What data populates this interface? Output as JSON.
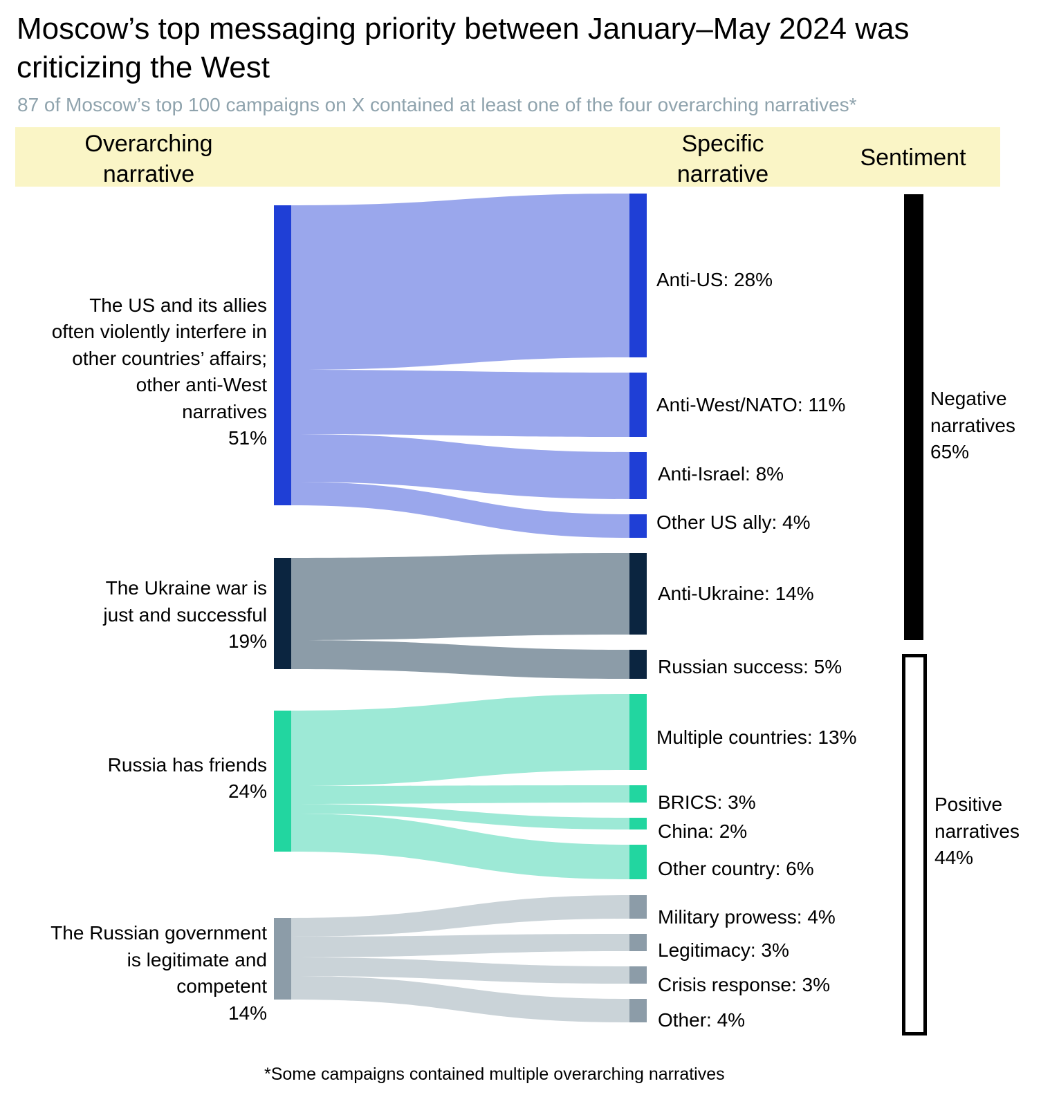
{
  "title": "Moscow’s top messaging priority between January–May 2024 was criticizing the West",
  "subtitle": "87 of Moscow’s top 100 campaigns on X contained at least one of the four overarching narratives*",
  "headers": {
    "overarching": "Overarching narrative",
    "specific": "Specific narrative",
    "sentiment": "Sentiment"
  },
  "footnote": "*Some campaigns contained multiple overarching narratives",
  "colors": {
    "anti_west_node": "#1f3fd6",
    "anti_west_flow": "#9aa7ec",
    "ukraine_node": "#0b2540",
    "ukraine_flow": "#8c9ca8",
    "friends_node": "#22d6a0",
    "friends_flow": "#9de9d6",
    "gov_node": "#8c9ca8",
    "gov_flow": "#cad3d8",
    "header_band": "#faf5c6",
    "subtitle": "#8fa3ad"
  },
  "overarching": [
    {
      "id": "anti_west",
      "label_lines": [
        "The US and its allies",
        "often violently interfere in",
        "other countries’ affairs;",
        "other anti-West",
        "narratives",
        "51%"
      ],
      "value": 51
    },
    {
      "id": "ukraine",
      "label_lines": [
        "The Ukraine war is",
        "just and successful",
        "19%"
      ],
      "value": 19
    },
    {
      "id": "friends",
      "label_lines": [
        "Russia has friends",
        "24%"
      ],
      "value": 24
    },
    {
      "id": "gov",
      "label_lines": [
        "The Russian government",
        "is legitimate and",
        "competent",
        "14%"
      ],
      "value": 14
    }
  ],
  "specific": [
    {
      "label": "Anti-US: 28%",
      "value": 28,
      "parent": "anti_west"
    },
    {
      "label": "Anti-West/NATO: 11%",
      "value": 11,
      "parent": "anti_west"
    },
    {
      "label": "Anti-Israel: 8%",
      "value": 8,
      "parent": "anti_west"
    },
    {
      "label": "Other US ally: 4%",
      "value": 4,
      "parent": "anti_west"
    },
    {
      "label": "Anti-Ukraine: 14%",
      "value": 14,
      "parent": "ukraine"
    },
    {
      "label": "Russian success: 5%",
      "value": 5,
      "parent": "ukraine"
    },
    {
      "label": "Multiple countries: 13%",
      "value": 13,
      "parent": "friends"
    },
    {
      "label": "BRICS: 3%",
      "value": 3,
      "parent": "friends"
    },
    {
      "label": "China: 2%",
      "value": 2,
      "parent": "friends"
    },
    {
      "label": "Other country: 6%",
      "value": 6,
      "parent": "friends"
    },
    {
      "label": "Military prowess: 4%",
      "value": 4,
      "parent": "gov"
    },
    {
      "label": "Legitimacy: 3%",
      "value": 3,
      "parent": "gov"
    },
    {
      "label": "Crisis response: 3%",
      "value": 3,
      "parent": "gov"
    },
    {
      "label": "Other: 4%",
      "value": 4,
      "parent": "gov"
    }
  ],
  "sentiment": [
    {
      "label_lines": [
        "Negative",
        "narratives",
        "65%"
      ],
      "value": 65,
      "style": "filled"
    },
    {
      "label_lines": [
        "Positive",
        "narratives",
        "44%"
      ],
      "value": 44,
      "style": "outline"
    }
  ]
}
